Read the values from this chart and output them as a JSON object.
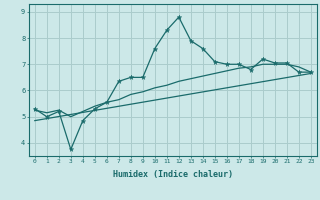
{
  "background_color": "#cce8e8",
  "grid_color": "#aacccc",
  "line_color": "#1a6b6b",
  "xlabel": "Humidex (Indice chaleur)",
  "xlim": [
    -0.5,
    23.5
  ],
  "ylim": [
    3.5,
    9.3
  ],
  "yticks": [
    4,
    5,
    6,
    7,
    8,
    9
  ],
  "xticks": [
    0,
    1,
    2,
    3,
    4,
    5,
    6,
    7,
    8,
    9,
    10,
    11,
    12,
    13,
    14,
    15,
    16,
    17,
    18,
    19,
    20,
    21,
    22,
    23
  ],
  "line1_x": [
    0,
    1,
    2,
    3,
    4,
    5,
    6,
    7,
    8,
    9,
    10,
    11,
    12,
    13,
    14,
    15,
    16,
    17,
    18,
    19,
    20,
    21,
    22,
    23
  ],
  "line1_y": [
    5.3,
    5.0,
    5.2,
    3.75,
    4.85,
    5.3,
    5.55,
    6.35,
    6.5,
    6.5,
    7.6,
    8.3,
    8.8,
    7.9,
    7.6,
    7.1,
    7.0,
    7.0,
    6.8,
    7.2,
    7.05,
    7.05,
    6.7,
    6.7
  ],
  "line2_x": [
    0,
    1,
    2,
    3,
    4,
    5,
    6,
    7,
    8,
    9,
    10,
    11,
    12,
    13,
    14,
    15,
    16,
    17,
    18,
    19,
    20,
    21,
    22,
    23
  ],
  "line2_y": [
    5.25,
    5.15,
    5.25,
    5.0,
    5.2,
    5.4,
    5.55,
    5.65,
    5.85,
    5.95,
    6.1,
    6.2,
    6.35,
    6.45,
    6.55,
    6.65,
    6.75,
    6.85,
    6.9,
    7.0,
    7.0,
    7.0,
    6.9,
    6.7
  ],
  "line3_x": [
    0,
    23
  ],
  "line3_y": [
    4.85,
    6.65
  ]
}
